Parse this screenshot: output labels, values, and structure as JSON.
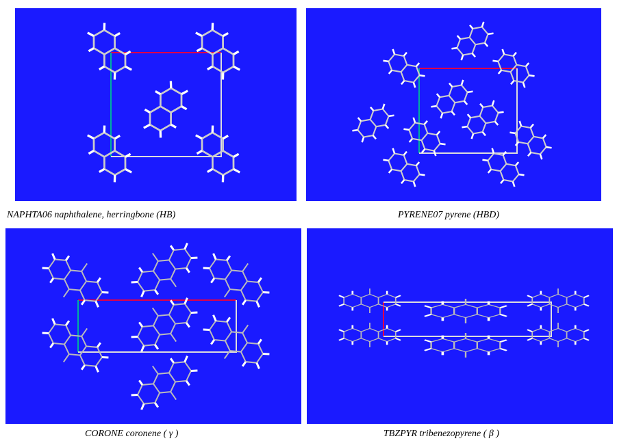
{
  "panels": [
    {
      "caption": "NAPHTA06 naphthalene, herringbone (HB)"
    },
    {
      "caption": "PYRENE07 pyrene (HBD)"
    },
    {
      "caption": "CORONE coronene ( γ )"
    },
    {
      "caption": "TBZPYR tribenezopyrene ( β )"
    }
  ]
}
